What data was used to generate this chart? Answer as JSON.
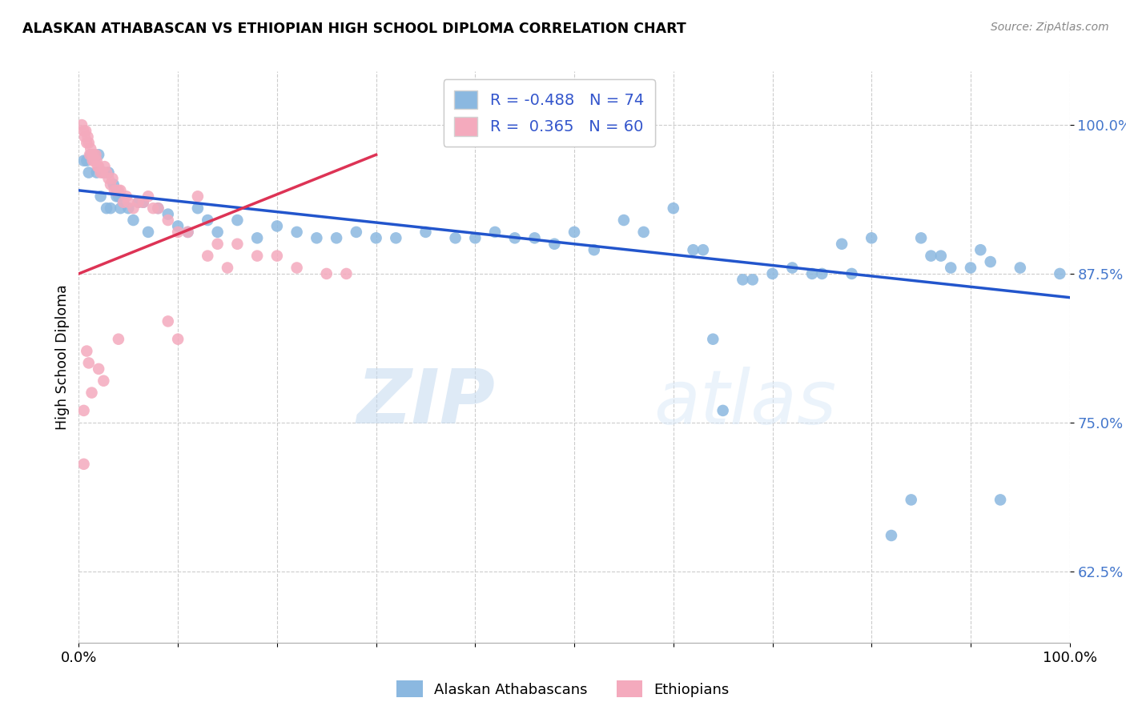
{
  "title": "ALASKAN ATHABASCAN VS ETHIOPIAN HIGH SCHOOL DIPLOMA CORRELATION CHART",
  "source": "Source: ZipAtlas.com",
  "ylabel": "High School Diploma",
  "legend_label1": "Alaskan Athabascans",
  "legend_label2": "Ethiopians",
  "R_blue": -0.488,
  "N_blue": 74,
  "R_pink": 0.365,
  "N_pink": 60,
  "ytick_labels": [
    "62.5%",
    "75.0%",
    "87.5%",
    "100.0%"
  ],
  "ytick_values": [
    0.625,
    0.75,
    0.875,
    1.0
  ],
  "xlim": [
    0.0,
    1.0
  ],
  "ylim": [
    0.565,
    1.045
  ],
  "blue_color": "#8BB8E0",
  "pink_color": "#F4AABD",
  "blue_line_color": "#2255CC",
  "pink_line_color": "#DD3355",
  "watermark_zip": "ZIP",
  "watermark_atlas": "atlas",
  "blue_scatter": [
    [
      0.005,
      0.97
    ],
    [
      0.008,
      0.97
    ],
    [
      0.01,
      0.96
    ],
    [
      0.012,
      0.975
    ],
    [
      0.015,
      0.975
    ],
    [
      0.018,
      0.96
    ],
    [
      0.02,
      0.975
    ],
    [
      0.022,
      0.94
    ],
    [
      0.025,
      0.96
    ],
    [
      0.028,
      0.93
    ],
    [
      0.03,
      0.96
    ],
    [
      0.032,
      0.93
    ],
    [
      0.035,
      0.95
    ],
    [
      0.038,
      0.94
    ],
    [
      0.04,
      0.94
    ],
    [
      0.042,
      0.93
    ],
    [
      0.045,
      0.935
    ],
    [
      0.05,
      0.93
    ],
    [
      0.055,
      0.92
    ],
    [
      0.06,
      0.935
    ],
    [
      0.065,
      0.935
    ],
    [
      0.07,
      0.91
    ],
    [
      0.08,
      0.93
    ],
    [
      0.09,
      0.925
    ],
    [
      0.1,
      0.915
    ],
    [
      0.11,
      0.91
    ],
    [
      0.12,
      0.93
    ],
    [
      0.13,
      0.92
    ],
    [
      0.14,
      0.91
    ],
    [
      0.16,
      0.92
    ],
    [
      0.18,
      0.905
    ],
    [
      0.2,
      0.915
    ],
    [
      0.22,
      0.91
    ],
    [
      0.24,
      0.905
    ],
    [
      0.26,
      0.905
    ],
    [
      0.28,
      0.91
    ],
    [
      0.3,
      0.905
    ],
    [
      0.32,
      0.905
    ],
    [
      0.35,
      0.91
    ],
    [
      0.38,
      0.905
    ],
    [
      0.4,
      0.905
    ],
    [
      0.42,
      0.91
    ],
    [
      0.44,
      0.905
    ],
    [
      0.46,
      0.905
    ],
    [
      0.48,
      0.9
    ],
    [
      0.5,
      0.91
    ],
    [
      0.52,
      0.895
    ],
    [
      0.55,
      0.92
    ],
    [
      0.57,
      0.91
    ],
    [
      0.6,
      0.93
    ],
    [
      0.62,
      0.895
    ],
    [
      0.63,
      0.895
    ],
    [
      0.64,
      0.82
    ],
    [
      0.65,
      0.76
    ],
    [
      0.67,
      0.87
    ],
    [
      0.68,
      0.87
    ],
    [
      0.7,
      0.875
    ],
    [
      0.72,
      0.88
    ],
    [
      0.74,
      0.875
    ],
    [
      0.75,
      0.875
    ],
    [
      0.77,
      0.9
    ],
    [
      0.78,
      0.875
    ],
    [
      0.8,
      0.905
    ],
    [
      0.82,
      0.655
    ],
    [
      0.84,
      0.685
    ],
    [
      0.85,
      0.905
    ],
    [
      0.86,
      0.89
    ],
    [
      0.87,
      0.89
    ],
    [
      0.88,
      0.88
    ],
    [
      0.9,
      0.88
    ],
    [
      0.91,
      0.895
    ],
    [
      0.92,
      0.885
    ],
    [
      0.93,
      0.685
    ],
    [
      0.95,
      0.88
    ],
    [
      0.99,
      0.875
    ]
  ],
  "pink_scatter": [
    [
      0.003,
      1.0
    ],
    [
      0.005,
      0.995
    ],
    [
      0.006,
      0.99
    ],
    [
      0.007,
      0.995
    ],
    [
      0.008,
      0.985
    ],
    [
      0.009,
      0.99
    ],
    [
      0.01,
      0.985
    ],
    [
      0.011,
      0.975
    ],
    [
      0.012,
      0.98
    ],
    [
      0.013,
      0.975
    ],
    [
      0.014,
      0.97
    ],
    [
      0.015,
      0.975
    ],
    [
      0.016,
      0.97
    ],
    [
      0.017,
      0.975
    ],
    [
      0.018,
      0.97
    ],
    [
      0.019,
      0.965
    ],
    [
      0.02,
      0.965
    ],
    [
      0.022,
      0.96
    ],
    [
      0.024,
      0.96
    ],
    [
      0.026,
      0.965
    ],
    [
      0.028,
      0.96
    ],
    [
      0.03,
      0.955
    ],
    [
      0.032,
      0.95
    ],
    [
      0.034,
      0.955
    ],
    [
      0.036,
      0.945
    ],
    [
      0.038,
      0.945
    ],
    [
      0.04,
      0.945
    ],
    [
      0.042,
      0.945
    ],
    [
      0.045,
      0.935
    ],
    [
      0.048,
      0.94
    ],
    [
      0.05,
      0.935
    ],
    [
      0.055,
      0.93
    ],
    [
      0.06,
      0.935
    ],
    [
      0.065,
      0.935
    ],
    [
      0.07,
      0.94
    ],
    [
      0.075,
      0.93
    ],
    [
      0.08,
      0.93
    ],
    [
      0.09,
      0.92
    ],
    [
      0.1,
      0.91
    ],
    [
      0.11,
      0.91
    ],
    [
      0.12,
      0.94
    ],
    [
      0.13,
      0.89
    ],
    [
      0.14,
      0.9
    ],
    [
      0.15,
      0.88
    ],
    [
      0.16,
      0.9
    ],
    [
      0.18,
      0.89
    ],
    [
      0.2,
      0.89
    ],
    [
      0.22,
      0.88
    ],
    [
      0.25,
      0.875
    ],
    [
      0.27,
      0.875
    ],
    [
      0.09,
      0.835
    ],
    [
      0.1,
      0.82
    ],
    [
      0.005,
      0.76
    ],
    [
      0.008,
      0.81
    ],
    [
      0.01,
      0.8
    ],
    [
      0.013,
      0.775
    ],
    [
      0.02,
      0.795
    ],
    [
      0.025,
      0.785
    ],
    [
      0.04,
      0.82
    ],
    [
      0.005,
      0.715
    ]
  ],
  "blue_trend_x": [
    0.0,
    1.0
  ],
  "blue_trend_y": [
    0.945,
    0.855
  ],
  "pink_trend_x": [
    0.0,
    0.3
  ],
  "pink_trend_y": [
    0.875,
    0.975
  ]
}
